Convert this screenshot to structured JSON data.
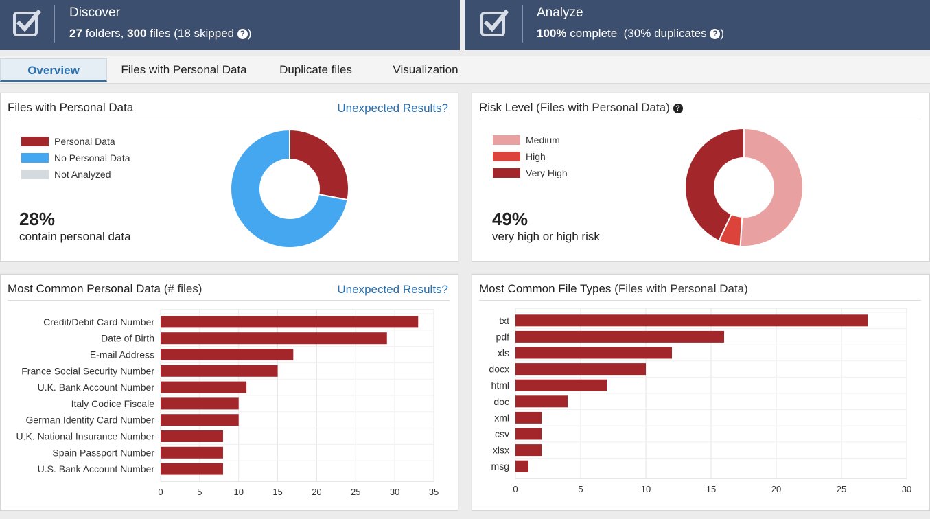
{
  "header": {
    "discover": {
      "title": "Discover",
      "folders": "27",
      "folders_label": "folders,",
      "files": "300",
      "files_label": "files",
      "skipped": "(18 skipped",
      "skipped_close": ")",
      "help": "?"
    },
    "analyze": {
      "title": "Analyze",
      "percent": "100%",
      "complete_label": "complete",
      "duplicates": "(30% duplicates",
      "duplicates_close": ")",
      "help": "?"
    }
  },
  "tabs": [
    {
      "label": "Overview",
      "active": true
    },
    {
      "label": "Files with Personal Data",
      "active": false
    },
    {
      "label": "Duplicate files",
      "active": false
    },
    {
      "label": "Visualization",
      "active": false
    }
  ],
  "panels": {
    "personal": {
      "title": "Files with Personal Data",
      "link": "Unexpected Results?",
      "stat": "28%",
      "stat_label": "contain personal data"
    },
    "risk": {
      "title": "Risk Level",
      "subtitle": "(Files with Personal Data)",
      "help": "?",
      "stat": "49%",
      "stat_label": "very high or high risk"
    },
    "common_data": {
      "title": "Most Common Personal Data",
      "subtitle": "(# files)",
      "link": "Unexpected Results?"
    },
    "file_types": {
      "title": "Most Common File Types",
      "subtitle": "(Files with Personal Data)"
    }
  },
  "colors": {
    "header_bg": "#3d4f6e",
    "personal": "#a3272a",
    "no_personal": "#45a7ef",
    "not_analyzed": "#d5dade",
    "medium": "#e8a0a0",
    "high": "#dc433a",
    "very_high": "#a3272a",
    "bar": "#a3272a",
    "link": "#2a6fae"
  },
  "chart_data": [
    {
      "type": "pie",
      "title": "Files with Personal Data",
      "labels": [
        "Personal Data",
        "No Personal Data",
        "Not Analyzed"
      ],
      "values": [
        28,
        72,
        0
      ],
      "colors": [
        "#a3272a",
        "#45a7ef",
        "#d5dade"
      ],
      "donut": true,
      "legend": "top-left"
    },
    {
      "type": "pie",
      "title": "Risk Level",
      "labels": [
        "Medium",
        "High",
        "Very High"
      ],
      "values": [
        51,
        6,
        43
      ],
      "colors": [
        "#e8a0a0",
        "#dc433a",
        "#a3272a"
      ],
      "donut": true,
      "legend": "top-left"
    },
    {
      "type": "bar",
      "orientation": "horizontal",
      "title": "Most Common Personal Data",
      "categories": [
        "Credit/Debit Card Number",
        "Date of Birth",
        "E-mail Address",
        "France Social Security Number",
        "U.K. Bank Account Number",
        "Italy Codice Fiscale",
        "German Identity Card Number",
        "U.K. National Insurance Number",
        "Spain Passport Number",
        "U.S. Bank Account Number"
      ],
      "values": [
        33,
        29,
        17,
        15,
        11,
        10,
        10,
        8,
        8,
        8
      ],
      "xlim": [
        0,
        35
      ],
      "xticks": [
        0,
        5,
        10,
        15,
        20,
        25,
        30,
        35
      ],
      "grid": true
    },
    {
      "type": "bar",
      "orientation": "horizontal",
      "title": "Most Common File Types",
      "categories": [
        "txt",
        "pdf",
        "xls",
        "docx",
        "html",
        "doc",
        "xml",
        "csv",
        "xlsx",
        "msg"
      ],
      "values": [
        27,
        16,
        12,
        10,
        7,
        4,
        2,
        2,
        2,
        1
      ],
      "xlim": [
        0,
        30
      ],
      "xticks": [
        0,
        5,
        10,
        15,
        20,
        25,
        30
      ],
      "grid": true
    }
  ]
}
